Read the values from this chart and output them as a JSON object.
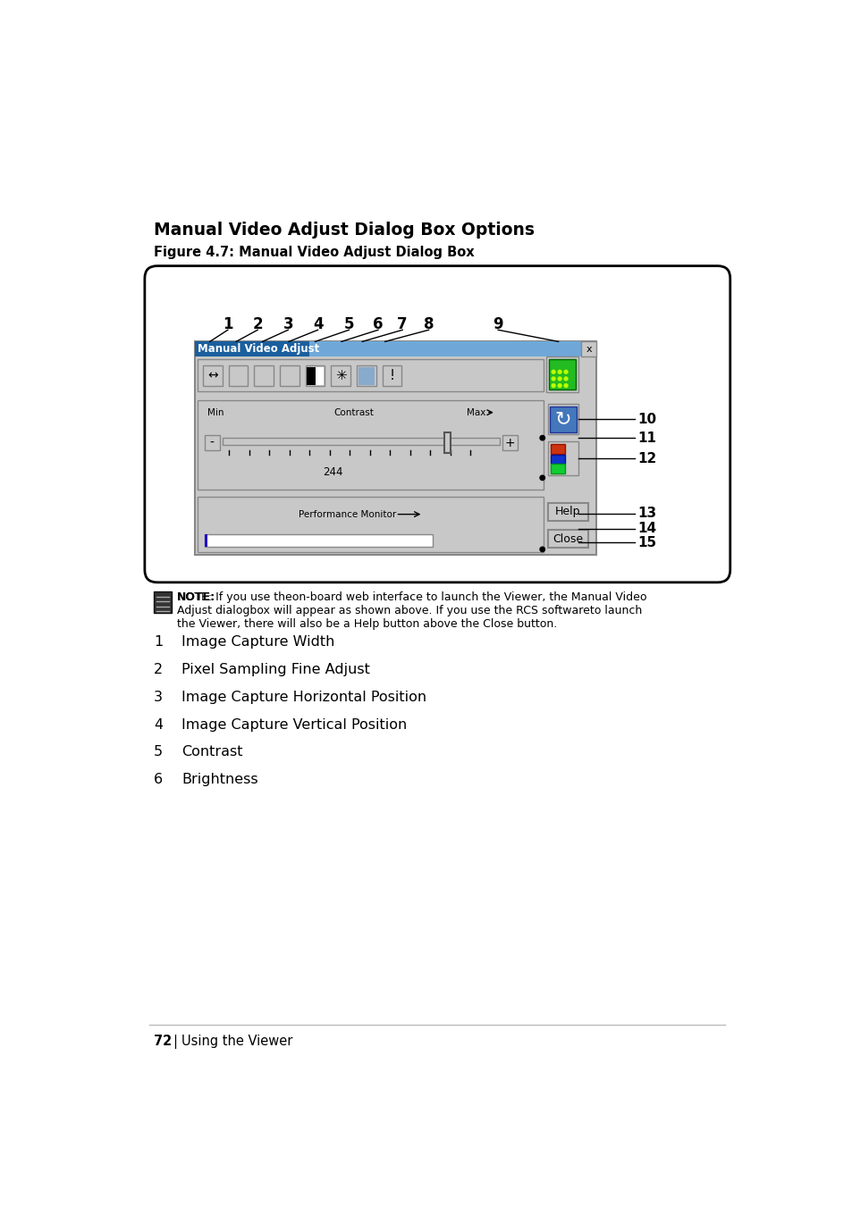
{
  "page_bg": "#ffffff",
  "title": "Manual Video Adjust Dialog Box Options",
  "figure_caption": "Figure 4.7: Manual Video Adjust Dialog Box",
  "note_bold": "NOTE:",
  "note_text": " If you use theon-board web interface to launch the Viewer, the Manual Video\nAdjust dialogbox will appear as shown above. If you use the RCS softwareto launch\nthe Viewer, there will also be a Help button above the Close button.",
  "items": [
    {
      "num": "1",
      "desc": "Image Capture Width"
    },
    {
      "num": "2",
      "desc": "Pixel Sampling Fine Adjust"
    },
    {
      "num": "3",
      "desc": "Image Capture Horizontal Position"
    },
    {
      "num": "4",
      "desc": "Image Capture Vertical Position"
    },
    {
      "num": "5",
      "desc": "Contrast"
    },
    {
      "num": "6",
      "desc": "Brightness"
    }
  ],
  "footer_num": "72",
  "footer_sep": "|",
  "footer_text": "Using the Viewer",
  "dialog_title": "Manual Video Adjust",
  "dialog_title_bg": "#1a5f9e",
  "dialog_title_bg2": "#6fa8d8",
  "dialog_bg": "#c0c0c0",
  "contrast_label": "Contrast",
  "min_label": "Min",
  "max_label": "Max",
  "value_label": "244",
  "perf_monitor_label": "Performance Monitor",
  "help_btn": "Help",
  "close_btn": "Close"
}
